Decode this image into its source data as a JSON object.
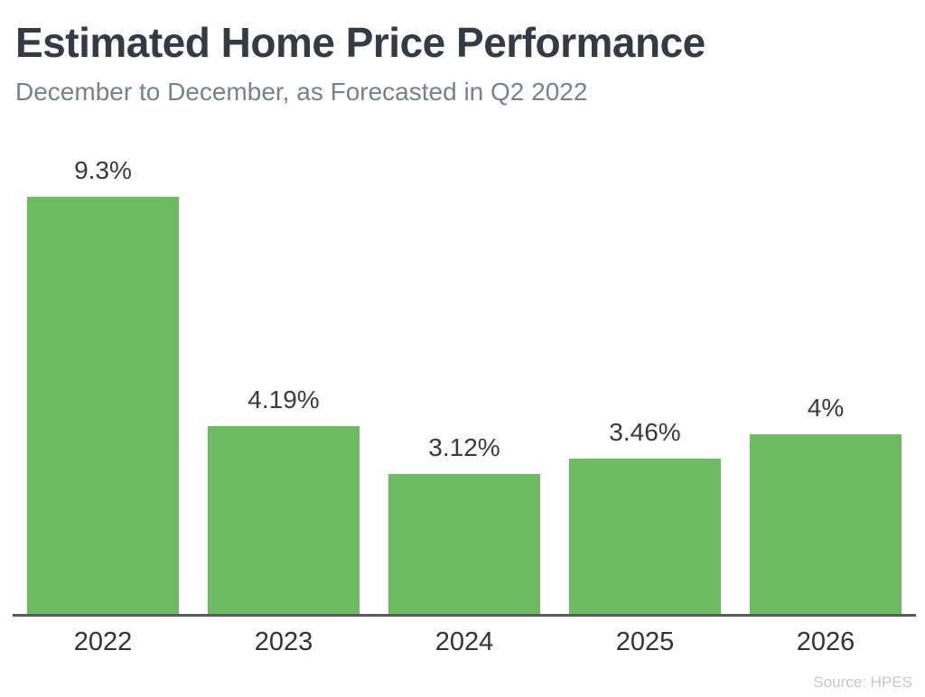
{
  "header": {
    "title": "Estimated Home Price Performance",
    "subtitle": "December to December, as Forecasted in Q2 2022"
  },
  "source_note": "Source: HPES",
  "colors": {
    "bar": "#6ebb63",
    "axis_line": "#58595b",
    "title": "#333b45",
    "subtitle": "#76828c",
    "data_label": "#3a3a3a",
    "source": "#c3c7cb"
  },
  "chart_data": {
    "type": "bar",
    "title": "Estimated Home Price Performance",
    "subtitle": "December to December, as Forecasted in Q2 2022",
    "categories": [
      "2022",
      "2023",
      "2024",
      "2025",
      "2026"
    ],
    "values": [
      9.3,
      4.19,
      3.12,
      3.46,
      4
    ],
    "value_labels": [
      "9.3%",
      "4.19%",
      "3.12%",
      "3.46%",
      "4%"
    ],
    "xlabel": "",
    "ylabel": "",
    "ylim": [
      0,
      9.3
    ],
    "grid": false,
    "legend": false,
    "bar_color": "#6ebb63",
    "annotations": [
      "Source: HPES"
    ]
  }
}
